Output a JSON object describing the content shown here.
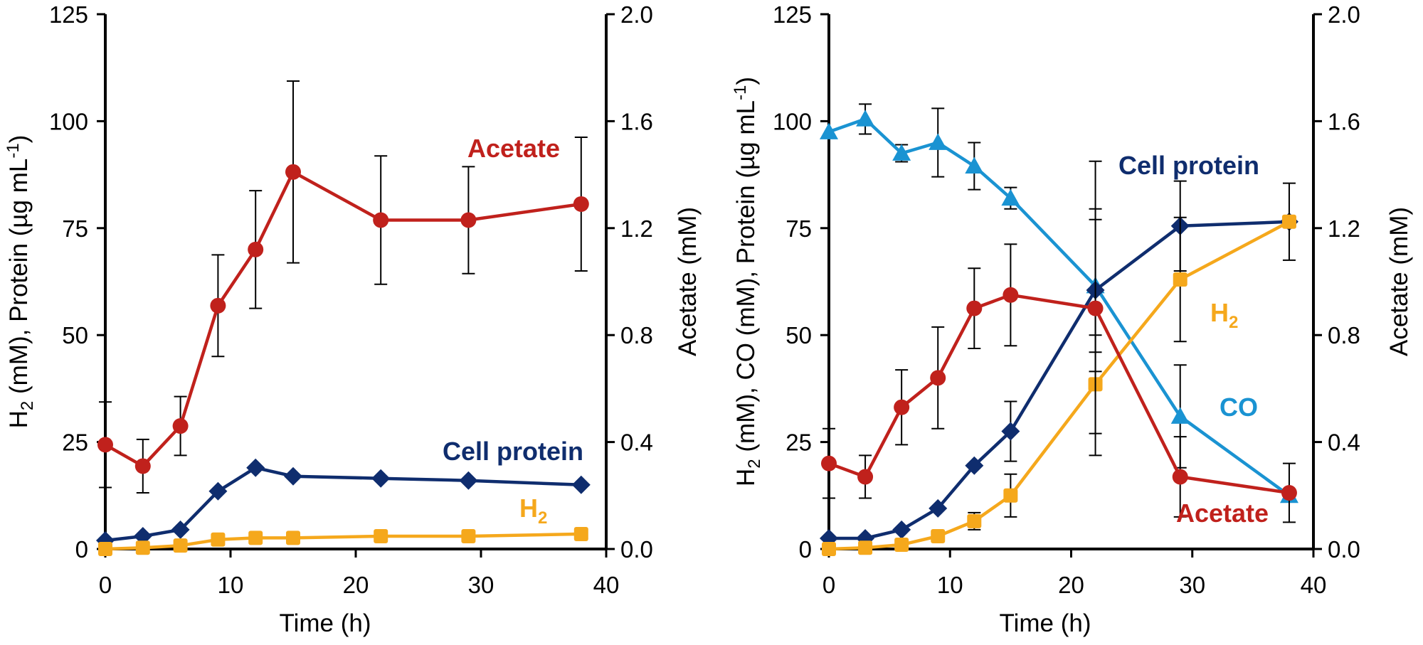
{
  "chart_data": [
    {
      "type": "line",
      "panel": "left",
      "xlabel": "Time (h)",
      "ylabel_left": {
        "main": "H",
        "sub": "2",
        "rest": " (mM), Protein (µg mL",
        "sup": "-1",
        "end": ")"
      },
      "ylabel_right": "Acetate (mM)",
      "xlim": [
        0,
        40
      ],
      "ylim_left": [
        0,
        125
      ],
      "ylim_right": [
        0,
        2.0
      ],
      "x_ticks": [
        "0",
        "10",
        "20",
        "30",
        "40"
      ],
      "y_ticks_left": [
        "0",
        "25",
        "50",
        "75",
        "100",
        "125"
      ],
      "y_ticks_right": [
        "0.0",
        "0.4",
        "0.8",
        "1.2",
        "1.6",
        "2.0"
      ],
      "series": [
        {
          "name": "Acetate",
          "label_main": "Acetate",
          "label_sub": "",
          "axis": "right",
          "color": "#c0211c",
          "marker": "circle",
          "x": [
            0,
            3,
            6,
            9,
            12,
            15,
            22,
            29,
            38
          ],
          "values": [
            0.39,
            0.31,
            0.46,
            0.91,
            1.12,
            1.41,
            1.23,
            1.23,
            1.29
          ],
          "err": [
            0.16,
            0.1,
            0.11,
            0.19,
            0.22,
            0.34,
            0.24,
            0.2,
            0.25
          ]
        },
        {
          "name": "Cell protein",
          "label_main": "Cell protein",
          "label_sub": "",
          "axis": "left",
          "color": "#0f2d6e",
          "marker": "diamond",
          "x": [
            0,
            3,
            6,
            9,
            12,
            15,
            22,
            29,
            38
          ],
          "values": [
            2.0,
            3.0,
            4.5,
            13.5,
            19.0,
            17.0,
            16.5,
            16.0,
            15.0
          ],
          "err": [
            0,
            0,
            0,
            0,
            0,
            0,
            0,
            0,
            0
          ]
        },
        {
          "name": "H2",
          "label_main": "H",
          "label_sub": "2",
          "axis": "left",
          "color": "#f5a81c",
          "marker": "square",
          "x": [
            0,
            3,
            6,
            9,
            12,
            15,
            22,
            29,
            38
          ],
          "values": [
            0.0,
            0.3,
            0.8,
            2.2,
            2.6,
            2.6,
            3.0,
            3.0,
            3.5
          ],
          "err": [
            0,
            0,
            0,
            0,
            0,
            0,
            0,
            0,
            0
          ]
        }
      ]
    },
    {
      "type": "line",
      "panel": "right",
      "xlabel": "Time (h)",
      "ylabel_left": {
        "main": "H",
        "sub": "2",
        "rest": " (mM), CO (mM), Protein (µg mL",
        "sup": "-1",
        "end": ")"
      },
      "ylabel_right": "Acetate (mM)",
      "xlim": [
        0,
        40
      ],
      "ylim_left": [
        0,
        125
      ],
      "ylim_right": [
        0,
        2.0
      ],
      "x_ticks": [
        "0",
        "10",
        "20",
        "30",
        "40"
      ],
      "y_ticks_left": [
        "0",
        "25",
        "50",
        "75",
        "100",
        "125"
      ],
      "y_ticks_right": [
        "0.0",
        "0.4",
        "0.8",
        "1.2",
        "1.6",
        "2.0"
      ],
      "series": [
        {
          "name": "CO",
          "label_main": "CO",
          "label_sub": "",
          "axis": "left",
          "color": "#1a93d2",
          "marker": "triangle",
          "x": [
            0,
            3,
            6,
            9,
            12,
            15,
            22,
            29,
            38
          ],
          "values": [
            97.5,
            100.5,
            92.5,
            95.0,
            89.5,
            82.0,
            61.5,
            31.0,
            12.5
          ],
          "err": [
            0,
            3.5,
            2.0,
            8.0,
            5.5,
            2.5,
            15.5,
            12.0,
            0
          ]
        },
        {
          "name": "Cell protein",
          "label_main": "Cell protein",
          "label_sub": "",
          "axis": "left",
          "color": "#0f2d6e",
          "marker": "diamond",
          "x": [
            0,
            3,
            6,
            9,
            12,
            15,
            22,
            29,
            38
          ],
          "values": [
            2.5,
            2.5,
            4.5,
            9.5,
            19.5,
            27.5,
            60.5,
            75.5,
            76.5
          ],
          "err": [
            0,
            0,
            0,
            0,
            0,
            7.0,
            19.0,
            10.5,
            0
          ]
        },
        {
          "name": "H2",
          "label_main": "H",
          "label_sub": "2",
          "axis": "left",
          "color": "#f5a81c",
          "marker": "square",
          "x": [
            0,
            3,
            6,
            9,
            12,
            15,
            22,
            29,
            38
          ],
          "values": [
            0.0,
            0.3,
            1.0,
            3.0,
            6.5,
            12.5,
            38.5,
            63.0,
            76.5
          ],
          "err": [
            0,
            0,
            0,
            0,
            2.0,
            5.0,
            11.5,
            14.5,
            9.0
          ]
        },
        {
          "name": "Acetate",
          "label_main": "Acetate",
          "label_sub": "",
          "axis": "right",
          "color": "#c0211c",
          "marker": "circle",
          "x": [
            0,
            3,
            6,
            9,
            12,
            15,
            22,
            29,
            38
          ],
          "values": [
            0.32,
            0.27,
            0.53,
            0.64,
            0.9,
            0.95,
            0.9,
            0.27,
            0.21
          ],
          "err": [
            0.13,
            0.08,
            0.14,
            0.19,
            0.15,
            0.19,
            0.55,
            0.15,
            0.11
          ]
        }
      ]
    }
  ]
}
